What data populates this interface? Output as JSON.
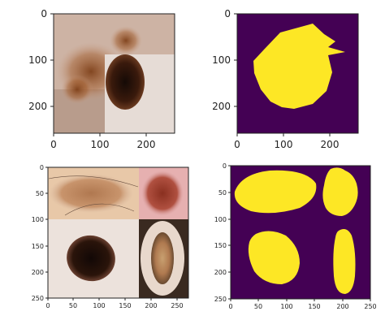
{
  "panels": [
    {
      "id": "top-left",
      "content": "dermoscopy-image-mosaic",
      "x_ticks": [
        "0",
        "100",
        "200"
      ],
      "y_ticks": [
        "0",
        "100",
        "200"
      ]
    },
    {
      "id": "top-right",
      "content": "segmentation-mask",
      "x_ticks": [
        "0",
        "100",
        "200"
      ],
      "y_ticks": [
        "0",
        "100",
        "200"
      ]
    },
    {
      "id": "bottom-left",
      "content": "dermoscopy-image-mosaic",
      "x_ticks": [
        "0",
        "50",
        "100",
        "150",
        "200",
        "250"
      ],
      "y_ticks": [
        "0",
        "50",
        "100",
        "150",
        "200",
        "250"
      ]
    },
    {
      "id": "bottom-right",
      "content": "segmentation-mask",
      "x_ticks": [
        "0",
        "50",
        "100",
        "150",
        "200",
        "250"
      ],
      "y_ticks": [
        "0",
        "50",
        "100",
        "150",
        "200",
        "250"
      ]
    }
  ],
  "colors": {
    "mask_background": "#440154",
    "mask_foreground": "#fde725",
    "axis": "#222222"
  }
}
